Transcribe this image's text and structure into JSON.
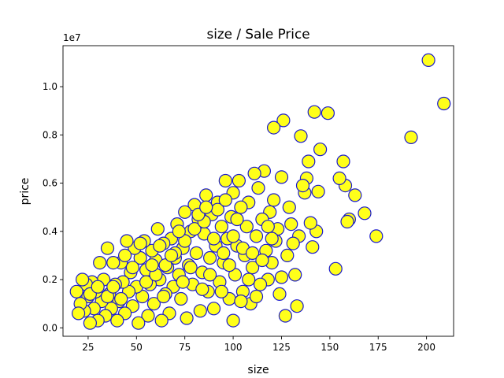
{
  "chart_data": {
    "type": "scatter",
    "title": "size / Sale Price",
    "xlabel": "size",
    "ylabel": "price",
    "y_offset_label": "1e7",
    "xlim": [
      12,
      214
    ],
    "ylim": [
      -350000,
      11700000
    ],
    "x_ticks": [
      25,
      50,
      75,
      100,
      125,
      150,
      175,
      200
    ],
    "y_ticks": [
      0,
      2000000,
      4000000,
      6000000,
      8000000,
      10000000
    ],
    "y_tick_labels": [
      "0.0",
      "0.2",
      "0.4",
      "0.6",
      "0.8",
      "1.0"
    ],
    "grid": false,
    "marker_fill": "#ffff1a",
    "marker_edge": "#1a1acc",
    "points": [
      [
        201,
        11100000
      ],
      [
        209,
        9300000
      ],
      [
        192,
        7900000
      ],
      [
        174,
        3800000
      ],
      [
        168,
        4750000
      ],
      [
        163,
        5500000
      ],
      [
        160,
        4500000
      ],
      [
        159,
        4400000
      ],
      [
        158,
        5900000
      ],
      [
        157,
        6900000
      ],
      [
        155,
        6200000
      ],
      [
        153,
        2450000
      ],
      [
        149,
        8900000
      ],
      [
        145,
        7400000
      ],
      [
        144,
        5650000
      ],
      [
        143,
        4000000
      ],
      [
        142,
        8950000
      ],
      [
        141,
        3350000
      ],
      [
        140,
        4350000
      ],
      [
        139,
        6900000
      ],
      [
        138,
        6200000
      ],
      [
        137,
        5600000
      ],
      [
        136,
        5900000
      ],
      [
        135,
        7950000
      ],
      [
        134,
        3800000
      ],
      [
        133,
        900000
      ],
      [
        132,
        2200000
      ],
      [
        131,
        3500000
      ],
      [
        130,
        4300000
      ],
      [
        129,
        5000000
      ],
      [
        128,
        3000000
      ],
      [
        127,
        500000
      ],
      [
        126,
        8600000
      ],
      [
        125,
        6250000
      ],
      [
        125,
        2100000
      ],
      [
        124,
        1400000
      ],
      [
        123,
        4100000
      ],
      [
        122,
        3600000
      ],
      [
        121,
        8300000
      ],
      [
        121,
        5300000
      ],
      [
        120,
        2700000
      ],
      [
        119,
        4800000
      ],
      [
        118,
        2000000
      ],
      [
        117,
        3200000
      ],
      [
        116,
        6500000
      ],
      [
        115,
        4500000
      ],
      [
        114,
        1800000
      ],
      [
        113,
        5800000
      ],
      [
        112,
        3800000
      ],
      [
        111,
        6400000
      ],
      [
        110,
        2500000
      ],
      [
        109,
        1000000
      ],
      [
        108,
        5200000
      ],
      [
        107,
        4200000
      ],
      [
        106,
        3000000
      ],
      [
        105,
        1500000
      ],
      [
        104,
        5000000
      ],
      [
        103,
        6100000
      ],
      [
        102,
        3400000
      ],
      [
        101,
        2200000
      ],
      [
        100,
        300000
      ],
      [
        100,
        5600000
      ],
      [
        99,
        4600000
      ],
      [
        98,
        1200000
      ],
      [
        97,
        3700000
      ],
      [
        96,
        6100000
      ],
      [
        95,
        2700000
      ],
      [
        94,
        4200000
      ],
      [
        93,
        1900000
      ],
      [
        92,
        5200000
      ],
      [
        91,
        3400000
      ],
      [
        90,
        800000
      ],
      [
        89,
        4700000
      ],
      [
        88,
        2900000
      ],
      [
        87,
        1500000
      ],
      [
        86,
        5500000
      ],
      [
        85,
        3900000
      ],
      [
        84,
        2300000
      ],
      [
        83,
        700000
      ],
      [
        82,
        4500000
      ],
      [
        81,
        3100000
      ],
      [
        80,
        5100000
      ],
      [
        79,
        1800000
      ],
      [
        78,
        4000000
      ],
      [
        77,
        2600000
      ],
      [
        76,
        400000
      ],
      [
        75,
        4800000
      ],
      [
        74,
        3300000
      ],
      [
        73,
        1200000
      ],
      [
        72,
        2200000
      ],
      [
        71,
        4300000
      ],
      [
        70,
        2900000
      ],
      [
        69,
        1700000
      ],
      [
        68,
        3700000
      ],
      [
        67,
        600000
      ],
      [
        66,
        2500000
      ],
      [
        65,
        1400000
      ],
      [
        64,
        3500000
      ],
      [
        63,
        300000
      ],
      [
        62,
        2000000
      ],
      [
        61,
        4100000
      ],
      [
        60,
        2800000
      ],
      [
        59,
        1000000
      ],
      [
        58,
        3200000
      ],
      [
        57,
        1800000
      ],
      [
        56,
        500000
      ],
      [
        55,
        2400000
      ],
      [
        54,
        3600000
      ],
      [
        53,
        1300000
      ],
      [
        52,
        2900000
      ],
      [
        51,
        200000
      ],
      [
        50,
        1700000
      ],
      [
        49,
        3300000
      ],
      [
        48,
        900000
      ],
      [
        47,
        2300000
      ],
      [
        46,
        1500000
      ],
      [
        45,
        3600000
      ],
      [
        44,
        600000
      ],
      [
        43,
        1900000
      ],
      [
        42,
        2700000
      ],
      [
        41,
        1100000
      ],
      [
        40,
        300000
      ],
      [
        39,
        1800000
      ],
      [
        38,
        2700000
      ],
      [
        37,
        800000
      ],
      [
        36,
        1400000
      ],
      [
        35,
        3300000
      ],
      [
        34,
        500000
      ],
      [
        33,
        2000000
      ],
      [
        32,
        1100000
      ],
      [
        31,
        2700000
      ],
      [
        30,
        300000
      ],
      [
        29,
        1500000
      ],
      [
        28,
        800000
      ],
      [
        27,
        1900000
      ],
      [
        26,
        200000
      ],
      [
        25,
        1300000
      ],
      [
        24,
        1800000
      ],
      [
        23,
        700000
      ],
      [
        22,
        2000000
      ],
      [
        21,
        1000000
      ],
      [
        20,
        600000
      ],
      [
        19,
        1500000
      ],
      [
        26,
        1400000
      ],
      [
        30,
        1700000
      ],
      [
        35,
        1300000
      ],
      [
        42,
        1200000
      ],
      [
        55,
        1900000
      ],
      [
        60,
        2200000
      ],
      [
        65,
        2600000
      ],
      [
        70,
        3100000
      ],
      [
        75,
        3600000
      ],
      [
        80,
        4100000
      ],
      [
        85,
        4400000
      ],
      [
        90,
        3700000
      ],
      [
        95,
        3100000
      ],
      [
        100,
        3800000
      ],
      [
        105,
        3300000
      ],
      [
        110,
        3100000
      ],
      [
        115,
        2800000
      ],
      [
        120,
        3700000
      ],
      [
        58,
        2600000
      ],
      [
        68,
        3000000
      ],
      [
        78,
        2500000
      ],
      [
        88,
        2200000
      ],
      [
        98,
        2600000
      ],
      [
        108,
        2000000
      ],
      [
        48,
        2500000
      ],
      [
        38,
        1700000
      ],
      [
        64,
        1300000
      ],
      [
        74,
        1900000
      ],
      [
        84,
        1600000
      ],
      [
        94,
        1500000
      ],
      [
        104,
        1100000
      ],
      [
        112,
        1300000
      ],
      [
        44,
        3000000
      ],
      [
        52,
        3500000
      ],
      [
        62,
        3400000
      ],
      [
        72,
        4000000
      ],
      [
        82,
        4700000
      ],
      [
        92,
        4900000
      ],
      [
        102,
        4500000
      ],
      [
        118,
        4200000
      ],
      [
        96,
        5300000
      ],
      [
        86,
        5000000
      ]
    ]
  }
}
